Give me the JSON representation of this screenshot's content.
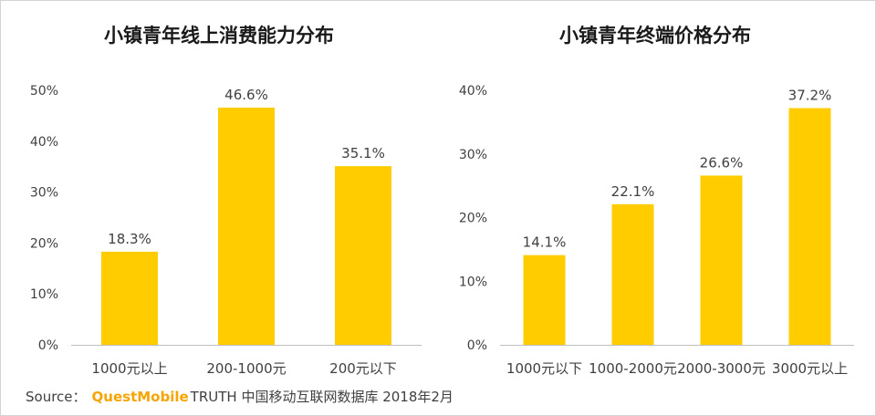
{
  "chart_data": [
    {
      "type": "bar",
      "title": "小镇青年线上消费能力分布",
      "categories": [
        "1000元以上",
        "200-1000元",
        "200元以下"
      ],
      "values": [
        18.3,
        46.6,
        35.1
      ],
      "value_labels": [
        "18.3%",
        "46.6%",
        "35.1%"
      ],
      "ylim": [
        0,
        50
      ],
      "yticks": [
        0,
        10,
        20,
        30,
        40,
        50
      ],
      "ytick_labels": [
        "0%",
        "10%",
        "20%",
        "30%",
        "40%",
        "50%"
      ],
      "xlabel": "",
      "ylabel": "",
      "grid": false,
      "bar_color": "#FFCC00"
    },
    {
      "type": "bar",
      "title": "小镇青年终端价格分布",
      "categories": [
        "1000元以下",
        "1000-2000元",
        "2000-3000元",
        "3000元以上"
      ],
      "values": [
        14.1,
        22.1,
        26.6,
        37.2
      ],
      "value_labels": [
        "14.1%",
        "22.1%",
        "26.6%",
        "37.2%"
      ],
      "ylim": [
        0,
        40
      ],
      "yticks": [
        0,
        10,
        20,
        30,
        40
      ],
      "ytick_labels": [
        "0%",
        "10%",
        "20%",
        "30%",
        "40%"
      ],
      "xlabel": "",
      "ylabel": "",
      "grid": false,
      "bar_color": "#FFCC00"
    }
  ],
  "source": {
    "prefix": "Source：",
    "brand": "QuestMobile",
    "rest": "TRUTH 中国移动互联网数据库 2018年2月"
  },
  "colors": {
    "bar": "#FFCC00",
    "axis": "#bfbfbf",
    "brand": "#F5A400"
  }
}
